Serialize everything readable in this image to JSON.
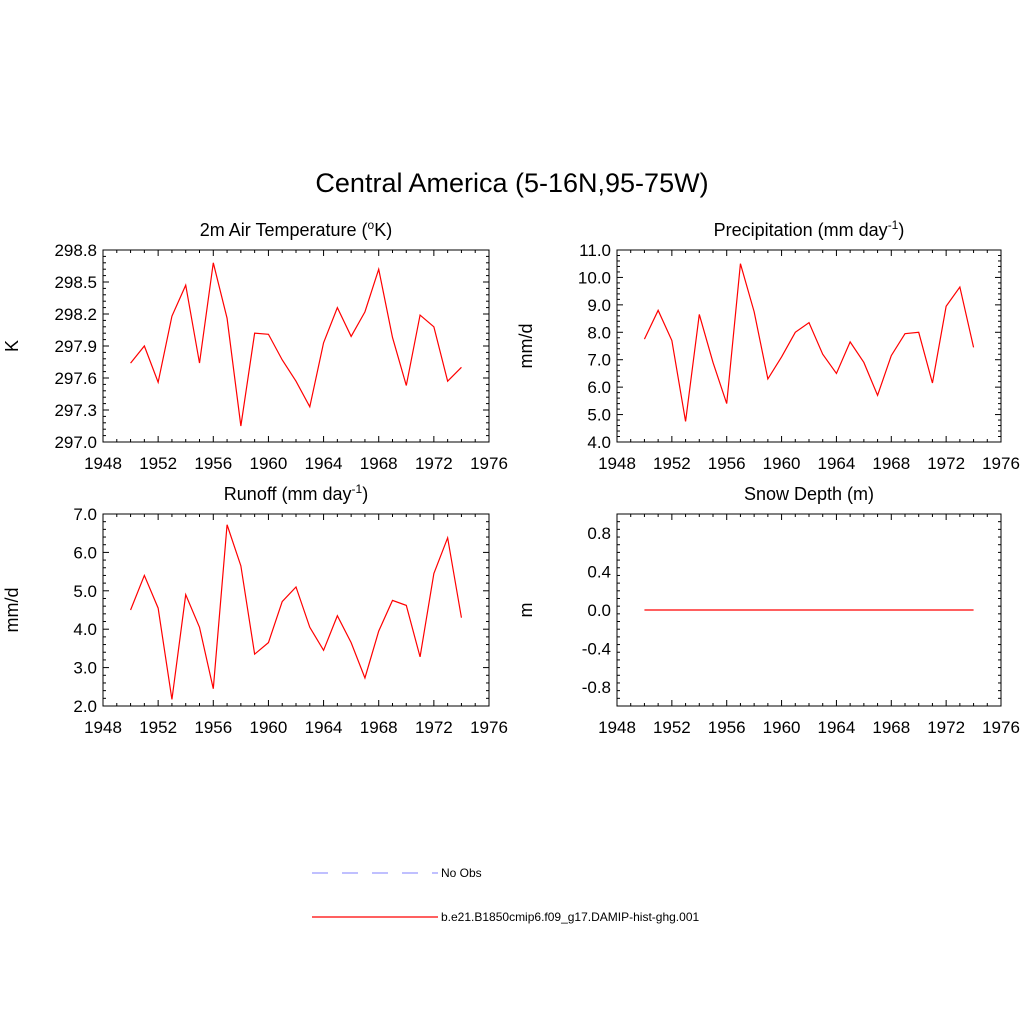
{
  "page": {
    "title": "Central America (5-16N,95-75W)"
  },
  "legend": {
    "entries": [
      {
        "label": "No Obs",
        "color": "#9b9bff",
        "style": "dashed"
      },
      {
        "label": "b.e21.B1850cmip6.f09_g17.DAMIP-hist-ghg.001",
        "color": "#ff0000",
        "style": "solid"
      }
    ]
  },
  "chart_data": [
    {
      "type": "line",
      "title": "2m Air Temperature (°K)",
      "title_base": "2m Air Temperature (",
      "title_sup": "o",
      "title_tail": "K)",
      "ylabel": "K",
      "xlim": [
        1948,
        1976
      ],
      "ylim": [
        297.0,
        298.8
      ],
      "xticks": [
        "1948",
        "1952",
        "1956",
        "1960",
        "1964",
        "1968",
        "1972",
        "1976"
      ],
      "yticks": [
        "297.0",
        "297.3",
        "297.6",
        "297.9",
        "298.2",
        "298.5",
        "298.8"
      ],
      "series": [
        {
          "color": "#ff0000",
          "x": [
            1950,
            1951,
            1952,
            1953,
            1954,
            1955,
            1956,
            1957,
            1958,
            1959,
            1960,
            1961,
            1962,
            1963,
            1964,
            1965,
            1966,
            1967,
            1968,
            1969,
            1970,
            1971,
            1972,
            1973,
            1974
          ],
          "values": [
            297.74,
            297.9,
            297.56,
            298.18,
            298.47,
            297.74,
            298.68,
            298.16,
            297.15,
            298.02,
            298.01,
            297.77,
            297.57,
            297.33,
            297.93,
            298.26,
            297.99,
            298.22,
            298.62,
            297.98,
            297.53,
            298.19,
            298.08,
            297.57,
            297.7
          ]
        }
      ]
    },
    {
      "type": "line",
      "title": "Precipitation (mm day-1)",
      "title_base": "Precipitation (mm day",
      "title_sup": "-1",
      "title_tail": ")",
      "ylabel": "mm/d",
      "xlim": [
        1948,
        1976
      ],
      "ylim": [
        4.0,
        11.0
      ],
      "xticks": [
        "1948",
        "1952",
        "1956",
        "1960",
        "1964",
        "1968",
        "1972",
        "1976"
      ],
      "yticks": [
        "4.0",
        "5.0",
        "6.0",
        "7.0",
        "8.0",
        "9.0",
        "10.0",
        "11.0"
      ],
      "series": [
        {
          "color": "#ff0000",
          "x": [
            1950,
            1951,
            1952,
            1953,
            1954,
            1955,
            1956,
            1957,
            1958,
            1959,
            1960,
            1961,
            1962,
            1963,
            1964,
            1965,
            1966,
            1967,
            1968,
            1969,
            1970,
            1971,
            1972,
            1973,
            1974
          ],
          "values": [
            7.75,
            8.8,
            7.7,
            4.75,
            8.65,
            6.9,
            5.4,
            10.5,
            8.75,
            6.3,
            7.1,
            8.0,
            8.35,
            7.2,
            6.5,
            7.65,
            6.9,
            5.7,
            7.15,
            7.95,
            8.0,
            6.15,
            8.95,
            9.65,
            7.45
          ]
        }
      ]
    },
    {
      "type": "line",
      "title": "Runoff (mm day-1)",
      "title_base": "Runoff (mm day",
      "title_sup": "-1",
      "title_tail": ")",
      "ylabel": "mm/d",
      "xlim": [
        1948,
        1976
      ],
      "ylim": [
        2.0,
        7.0
      ],
      "xticks": [
        "1948",
        "1952",
        "1956",
        "1960",
        "1964",
        "1968",
        "1972",
        "1976"
      ],
      "yticks": [
        "2.0",
        "3.0",
        "4.0",
        "5.0",
        "6.0",
        "7.0"
      ],
      "series": [
        {
          "color": "#ff0000",
          "x": [
            1950,
            1951,
            1952,
            1953,
            1954,
            1955,
            1956,
            1957,
            1958,
            1959,
            1960,
            1961,
            1962,
            1963,
            1964,
            1965,
            1966,
            1967,
            1968,
            1969,
            1970,
            1971,
            1972,
            1973,
            1974
          ],
          "values": [
            4.5,
            5.4,
            4.55,
            2.17,
            4.9,
            4.05,
            2.45,
            6.72,
            5.65,
            3.35,
            3.65,
            4.72,
            5.1,
            4.05,
            3.45,
            4.35,
            3.65,
            2.73,
            3.95,
            4.75,
            4.62,
            3.28,
            5.45,
            6.38,
            4.3
          ]
        }
      ]
    },
    {
      "type": "line",
      "title": "Snow Depth (m)",
      "title_base": "Snow Depth (m)",
      "title_sup": "",
      "title_tail": "",
      "ylabel": "m",
      "xlim": [
        1948,
        1976
      ],
      "ylim": [
        -1.0,
        1.0
      ],
      "xticks": [
        "1948",
        "1952",
        "1956",
        "1960",
        "1964",
        "1968",
        "1972",
        "1976"
      ],
      "yticks": [
        "-0.8",
        "-0.4",
        "0.0",
        "0.4",
        "0.8"
      ],
      "series": [
        {
          "color": "#ff0000",
          "x": [
            1950,
            1951,
            1952,
            1953,
            1954,
            1955,
            1956,
            1957,
            1958,
            1959,
            1960,
            1961,
            1962,
            1963,
            1964,
            1965,
            1966,
            1967,
            1968,
            1969,
            1970,
            1971,
            1972,
            1973,
            1974
          ],
          "values": [
            0,
            0,
            0,
            0,
            0,
            0,
            0,
            0,
            0,
            0,
            0,
            0,
            0,
            0,
            0,
            0,
            0,
            0,
            0,
            0,
            0,
            0,
            0,
            0,
            0
          ]
        }
      ]
    }
  ]
}
